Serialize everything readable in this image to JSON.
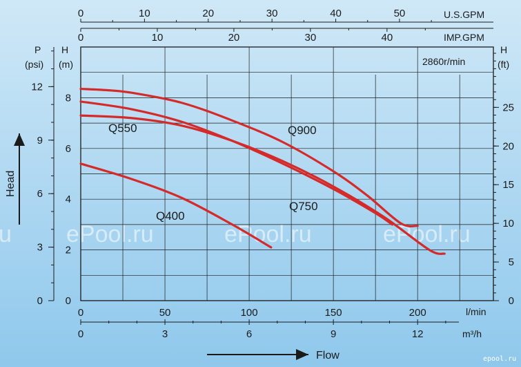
{
  "colors": {
    "background_top": "#cfe8f7",
    "background_bottom": "#8fc8ec",
    "curve": "#d42a2a",
    "grid": "#1a1a1a"
  },
  "watermarks": [
    "ePool.ru",
    "ePool.ru",
    "ePool.ru",
    "u"
  ],
  "corner_logo": "epool.ru",
  "chart_data": {
    "type": "line",
    "speed_label": "2860r/min",
    "x_axis_label": "Flow",
    "xlim": [
      0,
      245
    ],
    "x_unit_main": "l/min",
    "ylim": [
      0,
      10
    ],
    "y_axis_label": "Head",
    "y_unit_m": "(m)",
    "y_unit_m_letter": "H",
    "y_unit_psi_letter": "P",
    "y_unit_psi": "(psi)",
    "y_unit_ft_letter": "H",
    "y_unit_ft": "(ft)",
    "x_ticks_lmin": [
      "0",
      "50",
      "100",
      "150",
      "200"
    ],
    "x_ticks_m3h": [
      "0",
      "3",
      "6",
      "9",
      "12"
    ],
    "x_unit_m3h": "m³/h",
    "top_ticks_usgpm": [
      "0",
      "10",
      "20",
      "30",
      "40",
      "50"
    ],
    "top_unit_usgpm": "U.S.GPM",
    "top_ticks_impgpm": [
      "0",
      "10",
      "20",
      "30",
      "40"
    ],
    "top_unit_impgpm": "IMP.GPM",
    "y_ticks_m": [
      "0",
      "2",
      "4",
      "6",
      "8"
    ],
    "y_ticks_psi": [
      "0",
      "3",
      "6",
      "9",
      "12"
    ],
    "y_ticks_ft": [
      "0",
      "5",
      "10",
      "15",
      "20",
      "25"
    ],
    "series": [
      {
        "name": "Q400",
        "x": [
          0,
          30,
          60,
          90,
          113
        ],
        "y": [
          5.4,
          4.8,
          4.05,
          3.0,
          2.1
        ]
      },
      {
        "name": "Q550",
        "x": [
          0,
          30,
          60,
          90,
          120,
          150,
          180,
          207,
          216
        ],
        "y": [
          7.3,
          7.2,
          6.9,
          6.3,
          5.5,
          4.5,
          3.3,
          2.0,
          1.85
        ]
      },
      {
        "name": "Q750",
        "x": [
          0,
          30,
          60,
          90,
          120,
          150,
          175,
          185
        ],
        "y": [
          7.85,
          7.55,
          7.05,
          6.3,
          5.4,
          4.4,
          3.45,
          3.0
        ]
      },
      {
        "name": "Q900",
        "x": [
          0,
          15,
          30,
          60,
          90,
          120,
          150,
          170,
          190,
          200
        ],
        "y": [
          8.35,
          8.3,
          8.2,
          7.8,
          7.1,
          6.25,
          5.1,
          4.15,
          3.05,
          2.95
        ]
      }
    ]
  }
}
